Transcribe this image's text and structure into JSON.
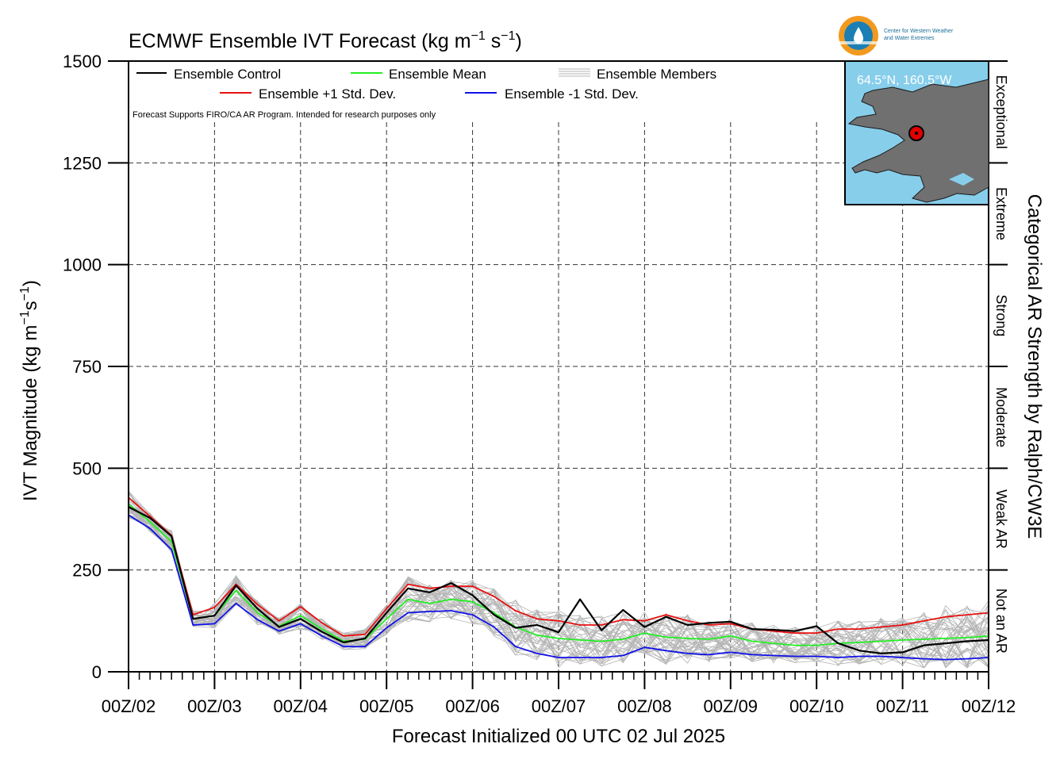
{
  "chart_data": {
    "type": "line",
    "title": "ECMWF Ensemble IVT Forecast (kg m",
    "title_unit_sup1": "−1",
    "title_unit_mid": " s",
    "title_unit_sup2": "−1",
    "title_unit_end": ")",
    "xlabel": "Forecast Initialized 00 UTC 02 Jul 2025",
    "ylabel": "IVT Magnitude (kg m",
    "ylabel_sup1": "−1",
    "ylabel_mid": "s",
    "ylabel_sup2": "−1",
    "ylabel_end": ")",
    "right_label": "Categorical AR Strength by Ralph/CW3E",
    "x_tick_labels": [
      "00Z/02",
      "00Z/03",
      "00Z/04",
      "00Z/05",
      "00Z/06",
      "00Z/07",
      "00Z/08",
      "00Z/09",
      "00Z/10",
      "00Z/11",
      "00Z/12"
    ],
    "x_range_days": [
      0,
      10
    ],
    "y_ticks": [
      0,
      250,
      500,
      750,
      1000,
      1250,
      1500
    ],
    "ylim": [
      0,
      1500
    ],
    "grid": true,
    "categories": [
      {
        "name": "Not an AR",
        "from": 0,
        "to": 250
      },
      {
        "name": "Weak AR",
        "from": 250,
        "to": 500
      },
      {
        "name": "Moderate",
        "from": 500,
        "to": 750
      },
      {
        "name": "Strong",
        "from": 750,
        "to": 1000
      },
      {
        "name": "Extreme",
        "from": 1000,
        "to": 1250
      },
      {
        "name": "Exceptional",
        "from": 1250,
        "to": 1500
      }
    ],
    "legend": {
      "control": "Ensemble Control",
      "mean": "Ensemble Mean",
      "members": "Ensemble Members",
      "plus_sd": "Ensemble +1 Std. Dev.",
      "minus_sd": "Ensemble -1 Std. Dev.",
      "note": "Forecast Supports FIRO/CA AR Program. Intended for research purposes only"
    },
    "colors": {
      "control": "#000000",
      "mean": "#22ee22",
      "members": "#b4b4b4",
      "plus_sd": "#e81010",
      "minus_sd": "#1010e8",
      "map_water": "#87ceeb",
      "map_land": "#707070",
      "marker": "#e00000"
    },
    "inset": {
      "location_label": "64.5°N, 160.5°W"
    },
    "logo": {
      "line1": "Center for Western Weather",
      "line2": "and Water Extremes"
    },
    "series": [
      {
        "key": "control",
        "name": "Ensemble Control",
        "x": [
          0,
          0.25,
          0.5,
          0.75,
          1,
          1.25,
          1.5,
          1.75,
          2,
          2.25,
          2.5,
          2.75,
          3,
          3.25,
          3.5,
          3.75,
          4,
          4.25,
          4.5,
          4.75,
          5,
          5.25,
          5.5,
          5.75,
          6,
          6.25,
          6.5,
          6.75,
          7,
          7.25,
          7.5,
          7.75,
          8,
          8.25,
          8.5,
          8.75,
          9,
          9.25,
          9.5,
          9.75,
          10
        ],
        "y": [
          405,
          378,
          333,
          130,
          138,
          212,
          155,
          110,
          130,
          98,
          72,
          82,
          145,
          205,
          195,
          218,
          188,
          140,
          108,
          115,
          97,
          178,
          102,
          152,
          110,
          135,
          115,
          120,
          123,
          105,
          103,
          100,
          112,
          70,
          52,
          45,
          48,
          65,
          70,
          75,
          78
        ]
      },
      {
        "key": "mean",
        "name": "Ensemble Mean",
        "x": [
          0,
          0.25,
          0.5,
          0.75,
          1,
          1.25,
          1.5,
          1.75,
          2,
          2.25,
          2.5,
          2.75,
          3,
          3.25,
          3.5,
          3.75,
          4,
          4.25,
          4.5,
          4.75,
          5,
          5.25,
          5.5,
          5.75,
          6,
          6.25,
          6.5,
          6.75,
          7,
          7.25,
          7.5,
          7.75,
          8,
          8.25,
          8.5,
          8.75,
          9,
          9.25,
          9.5,
          9.75,
          10
        ],
        "y": [
          412,
          368,
          320,
          130,
          138,
          200,
          145,
          112,
          138,
          105,
          75,
          80,
          130,
          178,
          168,
          178,
          172,
          145,
          110,
          90,
          82,
          78,
          75,
          80,
          95,
          85,
          82,
          80,
          88,
          75,
          70,
          65,
          65,
          70,
          72,
          75,
          78,
          80,
          82,
          84,
          88
        ]
      },
      {
        "key": "plus_sd",
        "name": "Ensemble +1 Std. Dev.",
        "x": [
          0,
          0.25,
          0.5,
          0.75,
          1,
          1.25,
          1.5,
          1.75,
          2,
          2.25,
          2.5,
          2.75,
          3,
          3.25,
          3.5,
          3.75,
          4,
          4.25,
          4.5,
          4.75,
          5,
          5.25,
          5.5,
          5.75,
          6,
          6.25,
          6.5,
          6.75,
          7,
          7.25,
          7.5,
          7.75,
          8,
          8.25,
          8.5,
          8.75,
          9,
          9.25,
          9.5,
          9.75,
          10
        ],
        "y": [
          428,
          382,
          335,
          140,
          158,
          215,
          165,
          125,
          160,
          120,
          88,
          92,
          155,
          215,
          205,
          210,
          210,
          185,
          150,
          130,
          125,
          115,
          115,
          128,
          125,
          140,
          125,
          115,
          118,
          105,
          100,
          95,
          95,
          105,
          105,
          110,
          115,
          125,
          135,
          140,
          145
        ]
      },
      {
        "key": "minus_sd",
        "name": "Ensemble -1 Std. Dev.",
        "x": [
          0,
          0.25,
          0.5,
          0.75,
          1,
          1.25,
          1.5,
          1.75,
          2,
          2.25,
          2.5,
          2.75,
          3,
          3.25,
          3.5,
          3.75,
          4,
          4.25,
          4.5,
          4.75,
          5,
          5.25,
          5.5,
          5.75,
          6,
          6.25,
          6.5,
          6.75,
          7,
          7.25,
          7.5,
          7.75,
          8,
          8.25,
          8.5,
          8.75,
          9,
          9.25,
          9.5,
          9.75,
          10
        ],
        "y": [
          385,
          352,
          300,
          115,
          118,
          168,
          128,
          100,
          118,
          88,
          62,
          62,
          108,
          145,
          148,
          150,
          140,
          110,
          62,
          45,
          35,
          35,
          35,
          40,
          60,
          52,
          45,
          42,
          48,
          42,
          40,
          38,
          38,
          35,
          38,
          38,
          35,
          32,
          30,
          32,
          35
        ]
      }
    ]
  }
}
